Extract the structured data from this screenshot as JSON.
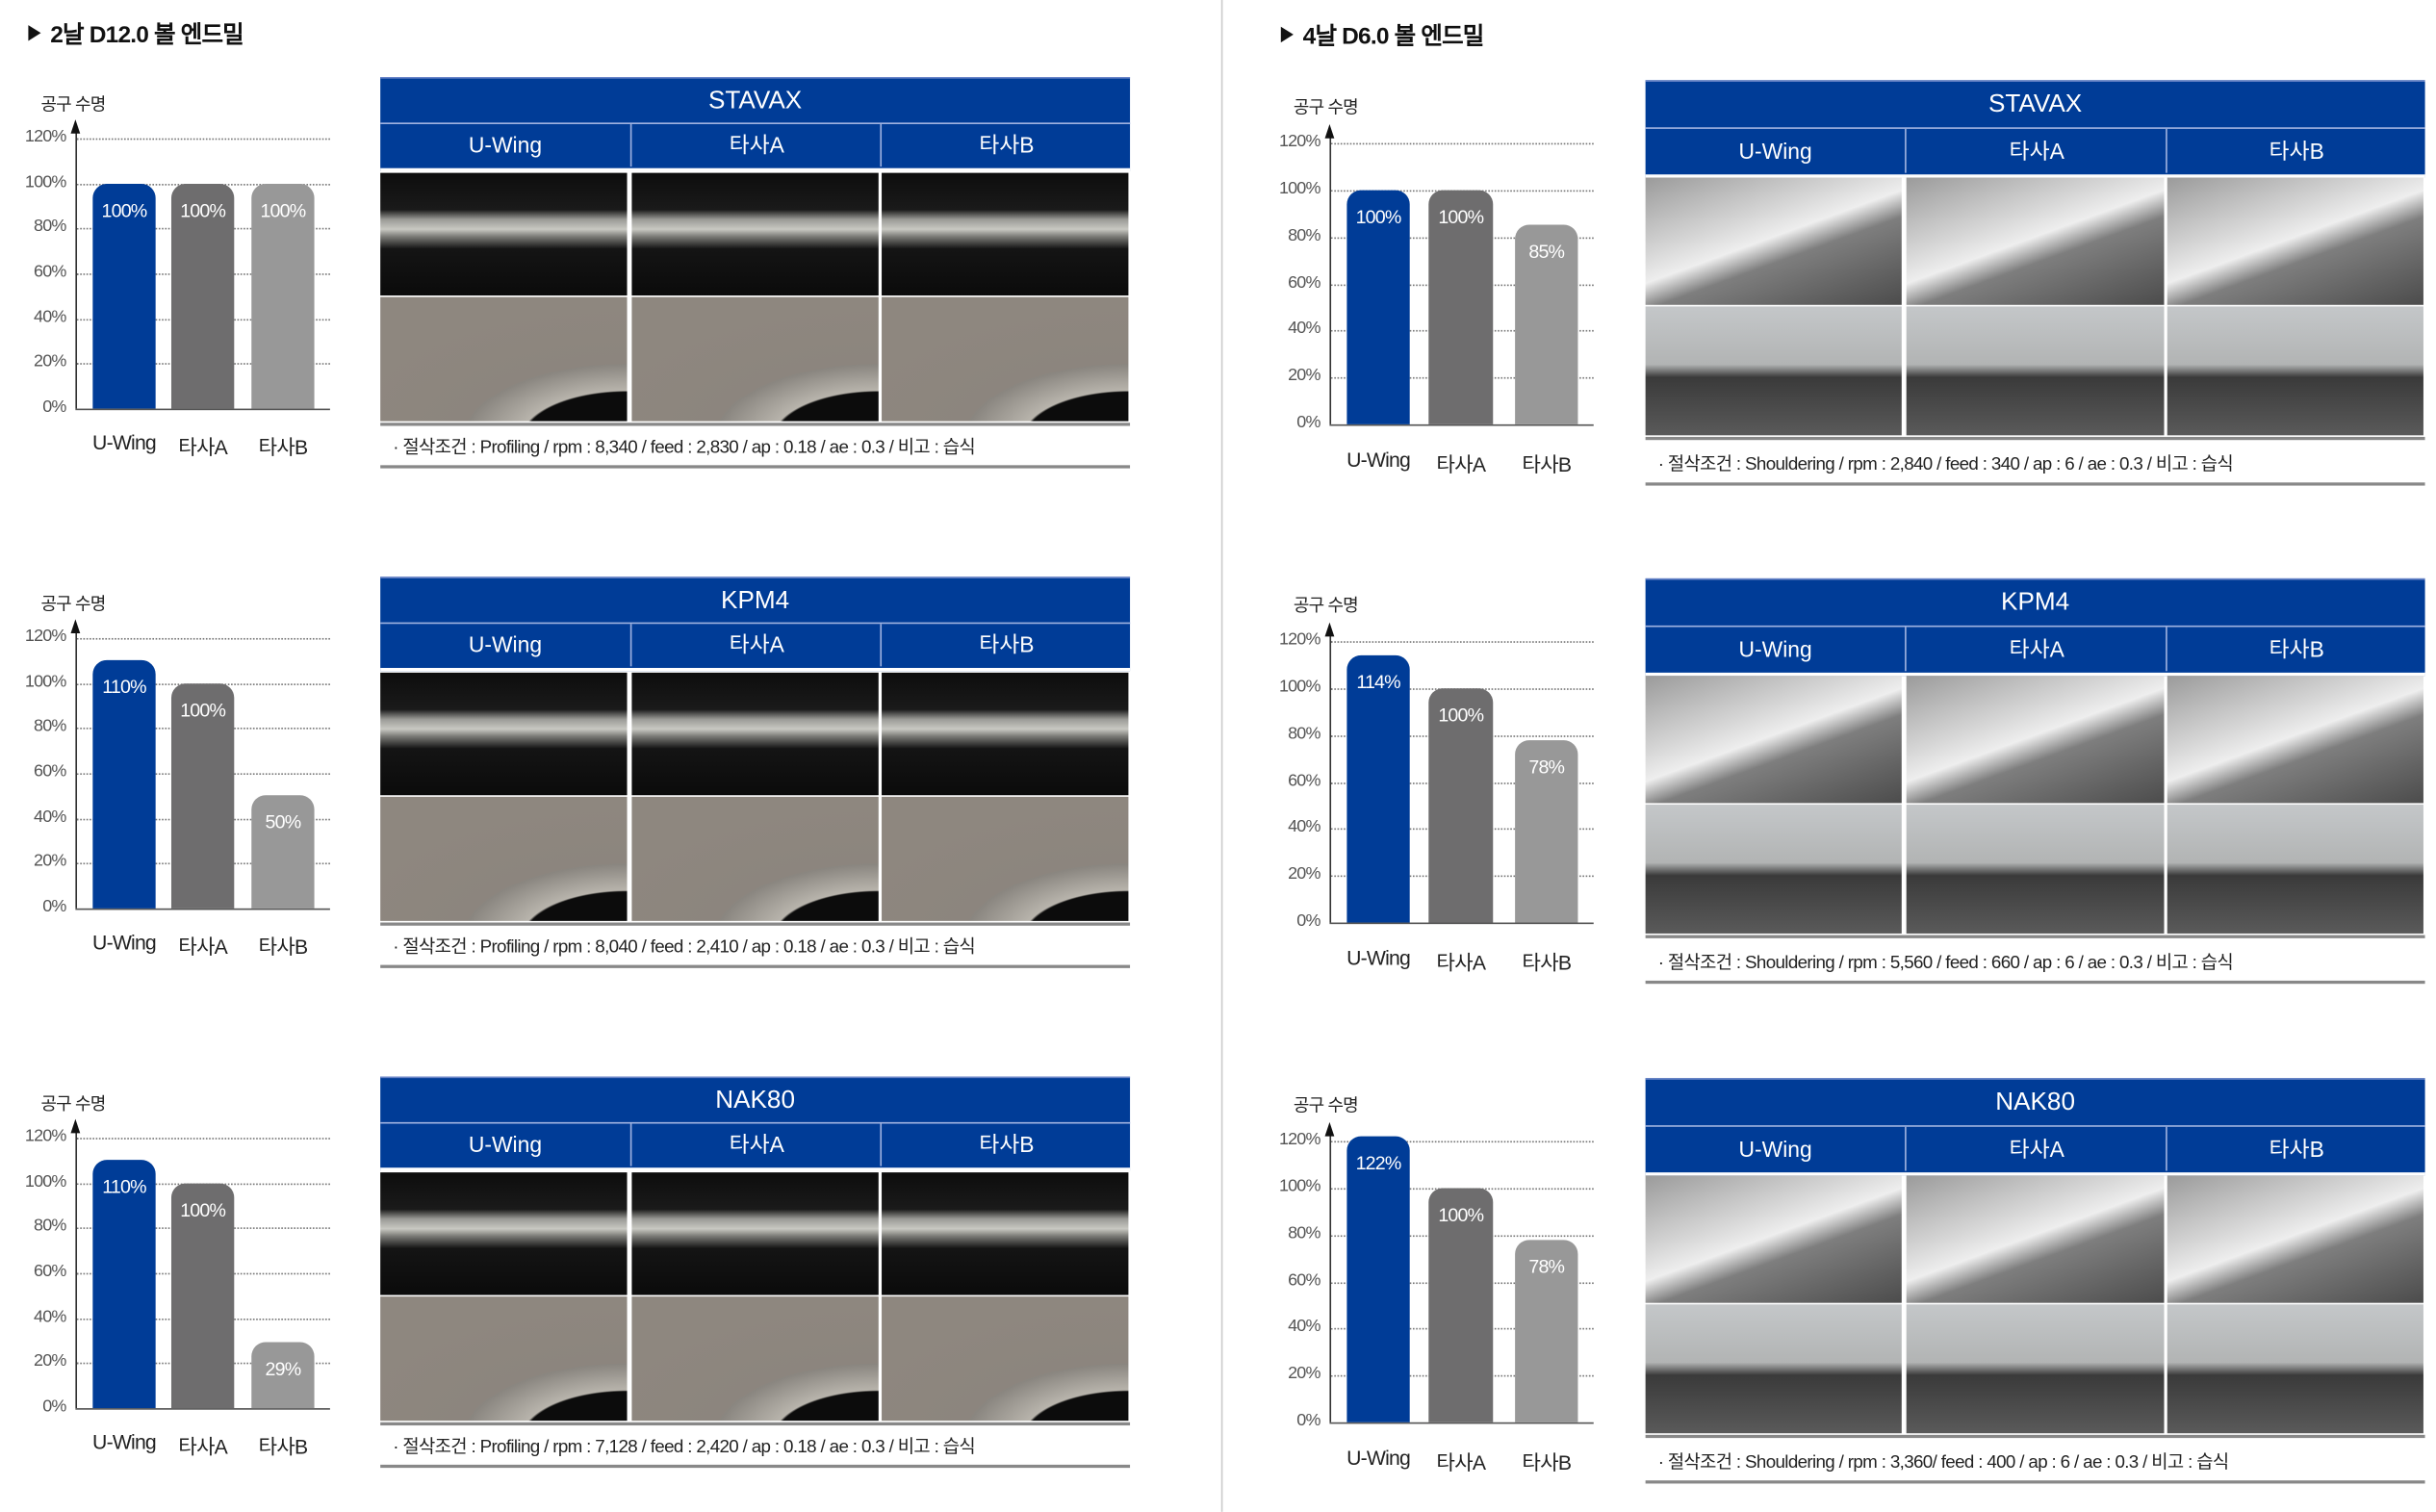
{
  "sections": [
    {
      "title": "2날 D12.0 볼 엔드밀",
      "photo_style": "dark"
    },
    {
      "title": "4날 D6.0 볼 엔드밀",
      "photo_style": "light"
    }
  ],
  "colors": {
    "u_wing": "#003c97",
    "company_a": "#6e6d6e",
    "company_b": "#989898",
    "header": "#003c97"
  },
  "chart_data": [
    {
      "type": "bar",
      "section": 0,
      "material": "STAVAX",
      "ylabel": "공구 수명",
      "categories": [
        "U-Wing",
        "타사A",
        "타사B"
      ],
      "values": [
        100,
        100,
        100
      ],
      "labels": [
        "100%",
        "100%",
        "100%"
      ],
      "yticks": [
        "0%",
        "20%",
        "40%",
        "60%",
        "80%",
        "100%",
        "120%"
      ],
      "ylim": [
        0,
        120
      ],
      "grid": true
    },
    {
      "type": "bar",
      "section": 0,
      "material": "KPM4",
      "ylabel": "공구 수명",
      "categories": [
        "U-Wing",
        "타사A",
        "타사B"
      ],
      "values": [
        110,
        100,
        50
      ],
      "labels": [
        "110%",
        "100%",
        "50%"
      ],
      "yticks": [
        "0%",
        "20%",
        "40%",
        "60%",
        "80%",
        "100%",
        "120%"
      ],
      "ylim": [
        0,
        120
      ],
      "grid": true
    },
    {
      "type": "bar",
      "section": 0,
      "material": "NAK80",
      "ylabel": "공구 수명",
      "categories": [
        "U-Wing",
        "타사A",
        "타사B"
      ],
      "values": [
        110,
        100,
        29
      ],
      "labels": [
        "110%",
        "100%",
        "29%"
      ],
      "yticks": [
        "0%",
        "20%",
        "40%",
        "60%",
        "80%",
        "100%",
        "120%"
      ],
      "ylim": [
        0,
        120
      ],
      "grid": true
    },
    {
      "type": "bar",
      "section": 1,
      "material": "STAVAX",
      "ylabel": "공구 수명",
      "categories": [
        "U-Wing",
        "타사A",
        "타사B"
      ],
      "values": [
        100,
        100,
        85
      ],
      "labels": [
        "100%",
        "100%",
        "85%"
      ],
      "yticks": [
        "0%",
        "20%",
        "40%",
        "60%",
        "80%",
        "100%",
        "120%"
      ],
      "ylim": [
        0,
        120
      ],
      "grid": true
    },
    {
      "type": "bar",
      "section": 1,
      "material": "KPM4",
      "ylabel": "공구 수명",
      "categories": [
        "U-Wing",
        "타사A",
        "타사B"
      ],
      "values": [
        114,
        100,
        78
      ],
      "labels": [
        "114%",
        "100%",
        "78%"
      ],
      "yticks": [
        "0%",
        "20%",
        "40%",
        "60%",
        "80%",
        "100%",
        "120%"
      ],
      "ylim": [
        0,
        120
      ],
      "grid": true
    },
    {
      "type": "bar",
      "section": 1,
      "material": "NAK80",
      "ylabel": "공구 수명",
      "categories": [
        "U-Wing",
        "타사A",
        "타사B"
      ],
      "values": [
        122,
        100,
        78
      ],
      "labels": [
        "122%",
        "100%",
        "78%"
      ],
      "yticks": [
        "0%",
        "20%",
        "40%",
        "60%",
        "80%",
        "100%",
        "120%"
      ],
      "ylim": [
        0,
        120
      ],
      "grid": true
    }
  ],
  "tables": [
    {
      "material": "STAVAX",
      "columns": [
        "U-Wing",
        "타사A",
        "타사B"
      ],
      "condition": "· 절삭조건 : Profiling / rpm : 8,340 / feed  : 2,830 / ap : 0.18 / ae : 0.3 / 비고 : 습식"
    },
    {
      "material": "KPM4",
      "columns": [
        "U-Wing",
        "타사A",
        "타사B"
      ],
      "condition": "· 절삭조건 : Profiling / rpm : 8,040 / feed  : 2,410 / ap : 0.18 / ae : 0.3 / 비고 : 습식"
    },
    {
      "material": "NAK80",
      "columns": [
        "U-Wing",
        "타사A",
        "타사B"
      ],
      "condition": "· 절삭조건 : Profiling / rpm : 7,128 / feed  : 2,420 / ap : 0.18 / ae : 0.3 / 비고 : 습식"
    },
    {
      "material": "STAVAX",
      "columns": [
        "U-Wing",
        "타사A",
        "타사B"
      ],
      "condition": "· 절삭조건 : Shouldering / rpm : 2,840 / feed  : 340 / ap : 6 / ae : 0.3 / 비고 : 습식"
    },
    {
      "material": "KPM4",
      "columns": [
        "U-Wing",
        "타사A",
        "타사B"
      ],
      "condition": "· 절삭조건 : Shouldering / rpm : 5,560 / feed  : 660 / ap : 6 / ae : 0.3 / 비고 : 습식"
    },
    {
      "material": "NAK80",
      "columns": [
        "U-Wing",
        "타사A",
        "타사B"
      ],
      "condition": "· 절삭조건 : Shouldering / rpm : 3,360/ feed  : 400 / ap : 6 / ae : 0.3 / 비고 : 습식"
    }
  ]
}
